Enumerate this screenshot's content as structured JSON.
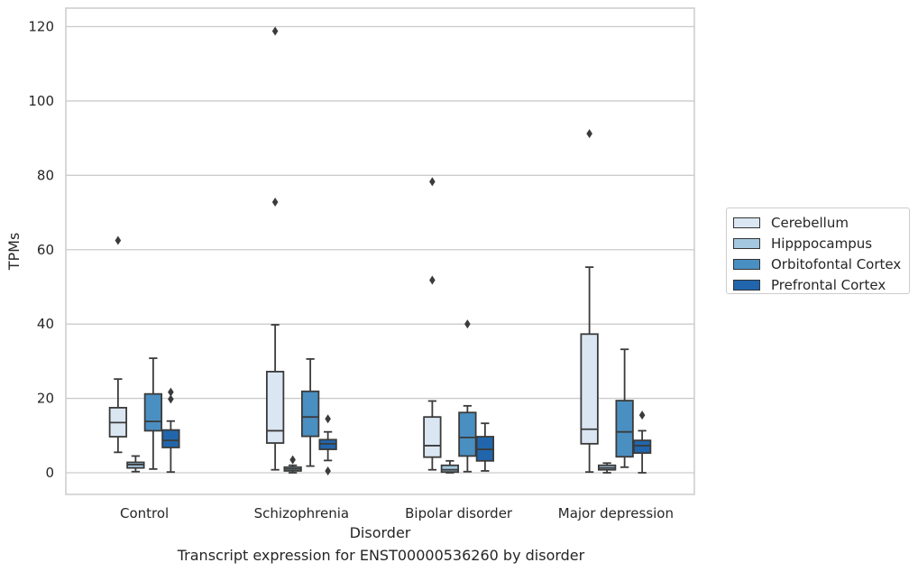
{
  "chart_data": {
    "type": "box",
    "caption": "Transcript expression for ENST00000536260 by disorder",
    "xlabel": "Disorder",
    "ylabel": "TPMs",
    "ylim": [
      -6,
      125
    ],
    "yticks": [
      0,
      20,
      40,
      60,
      80,
      100,
      120
    ],
    "grid": true,
    "legend_position": "right",
    "categories": [
      "Control",
      "Schizophrenia",
      "Bipolar disorder",
      "Major depression"
    ],
    "series": [
      {
        "name": "Cerebellum",
        "color": "#dae6f2",
        "boxes": [
          {
            "whisker_low": 5.5,
            "q1": 9.7,
            "median": 13.5,
            "q3": 17.5,
            "whisker_high": 25.2,
            "outliers": [
              62.5
            ]
          },
          {
            "whisker_low": 0.8,
            "q1": 8.0,
            "median": 11.3,
            "q3": 27.2,
            "whisker_high": 39.8,
            "outliers": [
              72.8,
              118.8
            ]
          },
          {
            "whisker_low": 0.8,
            "q1": 4.2,
            "median": 7.3,
            "q3": 15.0,
            "whisker_high": 19.3,
            "outliers": [
              51.8,
              78.3
            ]
          },
          {
            "whisker_low": 0.2,
            "q1": 7.8,
            "median": 11.7,
            "q3": 37.3,
            "whisker_high": 55.3,
            "outliers": [
              91.2
            ]
          }
        ]
      },
      {
        "name": "Hipppocampus",
        "color": "#a3c8df",
        "boxes": [
          {
            "whisker_low": 0.3,
            "q1": 1.3,
            "median": 2.2,
            "q3": 2.8,
            "whisker_high": 4.5,
            "outliers": []
          },
          {
            "whisker_low": 0.0,
            "q1": 0.5,
            "median": 1.0,
            "q3": 1.5,
            "whisker_high": 2.0,
            "outliers": [
              3.5
            ]
          },
          {
            "whisker_low": 0.0,
            "q1": 0.2,
            "median": 0.8,
            "q3": 2.0,
            "whisker_high": 3.2,
            "outliers": []
          },
          {
            "whisker_low": 0.0,
            "q1": 0.8,
            "median": 1.3,
            "q3": 2.0,
            "whisker_high": 2.6,
            "outliers": []
          }
        ]
      },
      {
        "name": "Orbitofontal Cortex",
        "color": "#4a8fc1",
        "boxes": [
          {
            "whisker_low": 1.0,
            "q1": 11.3,
            "median": 13.8,
            "q3": 21.2,
            "whisker_high": 30.8,
            "outliers": []
          },
          {
            "whisker_low": 1.8,
            "q1": 9.8,
            "median": 15.0,
            "q3": 21.9,
            "whisker_high": 30.6,
            "outliers": []
          },
          {
            "whisker_low": 0.3,
            "q1": 4.5,
            "median": 9.5,
            "q3": 16.2,
            "whisker_high": 18.0,
            "outliers": [
              40.0
            ]
          },
          {
            "whisker_low": 1.5,
            "q1": 4.3,
            "median": 11.0,
            "q3": 19.4,
            "whisker_high": 33.2,
            "outliers": []
          }
        ]
      },
      {
        "name": "Prefrontal Cortex",
        "color": "#2166ac",
        "boxes": [
          {
            "whisker_low": 0.2,
            "q1": 6.8,
            "median": 8.7,
            "q3": 11.5,
            "whisker_high": 13.9,
            "outliers": [
              19.8,
              21.7
            ]
          },
          {
            "whisker_low": 3.3,
            "q1": 6.3,
            "median": 7.8,
            "q3": 8.9,
            "whisker_high": 11.0,
            "outliers": [
              0.5,
              14.5
            ]
          },
          {
            "whisker_low": 0.5,
            "q1": 3.2,
            "median": 6.3,
            "q3": 9.7,
            "whisker_high": 13.3,
            "outliers": []
          },
          {
            "whisker_low": 0.0,
            "q1": 5.3,
            "median": 7.3,
            "q3": 8.7,
            "whisker_high": 11.3,
            "outliers": [
              15.5
            ]
          }
        ]
      }
    ]
  }
}
